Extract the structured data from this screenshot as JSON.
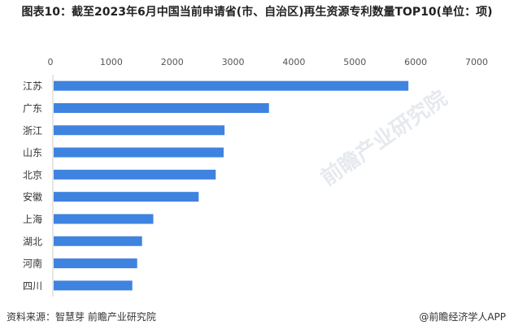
{
  "chart_data": {
    "type": "bar",
    "orientation": "horizontal",
    "title": "图表10：截至2023年6月中国当前申请省(市、自治区)再生资源专利数量TOP10(单位：项)",
    "categories": [
      "江苏",
      "广东",
      "浙江",
      "山东",
      "北京",
      "安徽",
      "上海",
      "湖北",
      "河南",
      "四川"
    ],
    "values": [
      5840,
      3550,
      2820,
      2805,
      2675,
      2395,
      1650,
      1465,
      1385,
      1305
    ],
    "xlim": [
      0,
      7000
    ],
    "xticks": [
      "0",
      "1000",
      "2000",
      "3000",
      "4000",
      "5000",
      "6000",
      "7000"
    ],
    "bar_color": "#3f83e0",
    "grid": false,
    "legend": "none"
  },
  "footer": {
    "source": "资料来源：智慧芽 前瞻产业研究院",
    "brand": "@前瞻经济学人APP"
  },
  "watermark": "前瞻产业研究院"
}
